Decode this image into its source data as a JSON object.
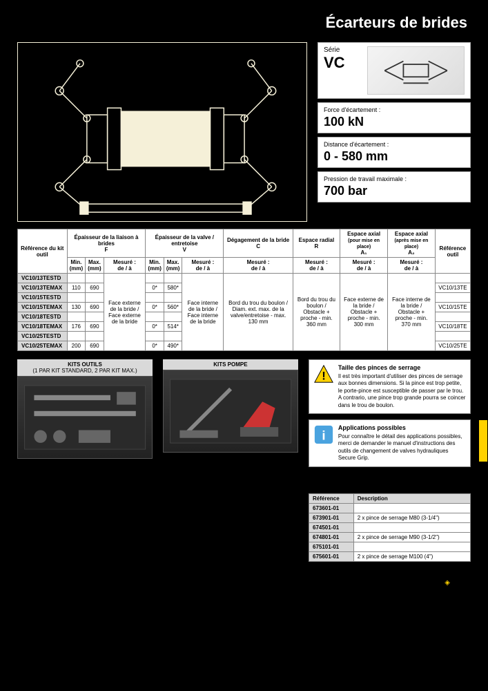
{
  "page_title": "Écarteurs de brides",
  "series": {
    "label": "Série",
    "code": "VC"
  },
  "specs": [
    {
      "label": "Force d'écartement :",
      "value": "100 kN"
    },
    {
      "label": "Distance d'écartement :",
      "value": "0 - 580 mm"
    },
    {
      "label": "Pression de travail maximale :",
      "value": "700 bar"
    }
  ],
  "table": {
    "headers": {
      "ref_kit": "Référence du kit outil",
      "liaison": "Épaisseur de la liaison à brides",
      "liaison_sym": "F",
      "valve": "Épaisseur de la valve / entretoise",
      "valve_sym": "V",
      "degagement": "Dégagement de la bride",
      "degagement_sym": "C",
      "radial": "Espace radial",
      "radial_sym": "R",
      "axial1": "Espace axial",
      "axial1_sub": "(pour mise en place)",
      "axial1_sym": "A₁",
      "axial2": "Espace axial",
      "axial2_sub": "(après mise en place)",
      "axial2_sym": "A₂",
      "ref_outil": "Référence outil",
      "min": "Min.",
      "max": "Max.",
      "mm": "(mm)",
      "mesure": "Mesuré :",
      "de_a": "de / à"
    },
    "merged": {
      "liaison_text": "Face externe de la bride / Face externe de la bride",
      "valve_text": "Face interne de la bride / Face interne de la bride",
      "degagement_text": "Bord du trou du boulon / Diam. ext. max. de la valve/entretoise - max. 130 mm",
      "radial_text": "Bord du trou du boulon / Obstacle + proche - min. 360 mm",
      "axial1_text": "Face externe de la bride / Obstacle + proche - min. 300 mm",
      "axial2_text": "Face interne de la bride / Obstacle + proche - min. 370 mm"
    },
    "rows": [
      {
        "ref": "VC10/13TESTD",
        "fmin": "",
        "fmax": "",
        "vmin": "",
        "vmax": "",
        "outil": ""
      },
      {
        "ref": "VC10/13TEMAX",
        "fmin": "110",
        "fmax": "690",
        "vmin": "0*",
        "vmax": "580*",
        "outil": "VC10/13TE"
      },
      {
        "ref": "VC10/15TESTD",
        "fmin": "",
        "fmax": "",
        "vmin": "",
        "vmax": "",
        "outil": ""
      },
      {
        "ref": "VC10/15TEMAX",
        "fmin": "130",
        "fmax": "690",
        "vmin": "0*",
        "vmax": "560*",
        "outil": "VC10/15TE"
      },
      {
        "ref": "VC10/18TESTD",
        "fmin": "",
        "fmax": "",
        "vmin": "",
        "vmax": "",
        "outil": ""
      },
      {
        "ref": "VC10/18TEMAX",
        "fmin": "176",
        "fmax": "690",
        "vmin": "0*",
        "vmax": "514*",
        "outil": "VC10/18TE"
      },
      {
        "ref": "VC10/25TESTD",
        "fmin": "",
        "fmax": "",
        "vmin": "",
        "vmax": "",
        "outil": ""
      },
      {
        "ref": "VC10/25TEMAX",
        "fmin": "200",
        "fmax": "690",
        "vmin": "0*",
        "vmax": "490*",
        "outil": "VC10/25TE"
      }
    ]
  },
  "kits": {
    "outils_title": "KITS OUTILS",
    "outils_sub": "(1 PAR KIT STANDARD, 2 PAR KIT MAX.)",
    "pompe_title": "KITS POMPE"
  },
  "notes": {
    "warn_title": "Taille des pinces de serrage",
    "warn_text": "Il est très important d'utiliser des pinces de serrage aux bonnes dimensions. Si la pince est trop petite, le porte-pince est susceptible de passer par le trou. A contrario, une pince trop grande pourra se coincer dans le trou de boulon.",
    "info_title": "Applications possibles",
    "info_text": "Pour connaître le détail des applications possibles, merci de demander le manuel d'instructions des outils de changement de valves hydrauliques Secure Grip."
  },
  "parts": {
    "col1": "Référence",
    "col2": "Description",
    "rows": [
      {
        "pn": "673601-01",
        "desc": ""
      },
      {
        "pn": "673901-01",
        "desc": "2 x pince de serrage M80 (3-1/4\")"
      },
      {
        "pn": "674501-01",
        "desc": ""
      },
      {
        "pn": "674801-01",
        "desc": "2 x pince de serrage M90 (3-1/2\")"
      },
      {
        "pn": "675101-01",
        "desc": ""
      },
      {
        "pn": "675601-01",
        "desc": "2 x pince de serrage M100 (4\")"
      }
    ]
  },
  "colors": {
    "accent": "#ffd200",
    "diagram_fill": "#f5f0d8",
    "gray": "#d9d9d9"
  }
}
